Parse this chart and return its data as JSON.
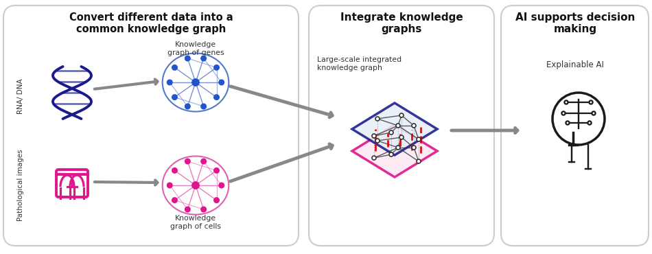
{
  "bg_color": "#ffffff",
  "panel_bg": "#ffffff",
  "panel_border": "#cccccc",
  "box1_title": "Convert different data into a\ncommon knowledge graph",
  "box2_title": "Integrate knowledge\ngraphs",
  "box3_title": "AI supports decision\nmaking",
  "box1_subtitle1": "Knowledge\ngraph of genes",
  "box1_subtitle2": "Knowledge\ngraph of cells",
  "box2_label": "Large-scale integrated\nknowledge graph",
  "box3_label": "Explainable AI",
  "rna_label": "RNA/ DNA",
  "path_label": "Pathological images",
  "blue_color": "#1a1a8c",
  "pink_color": "#e0148c",
  "gray_color": "#808080",
  "dark_gray": "#404040",
  "red_color": "#cc0000",
  "node_blue": "#2255cc",
  "node_pink": "#e0148c",
  "edge_blue": "#5577cc",
  "edge_pink": "#e060b0"
}
